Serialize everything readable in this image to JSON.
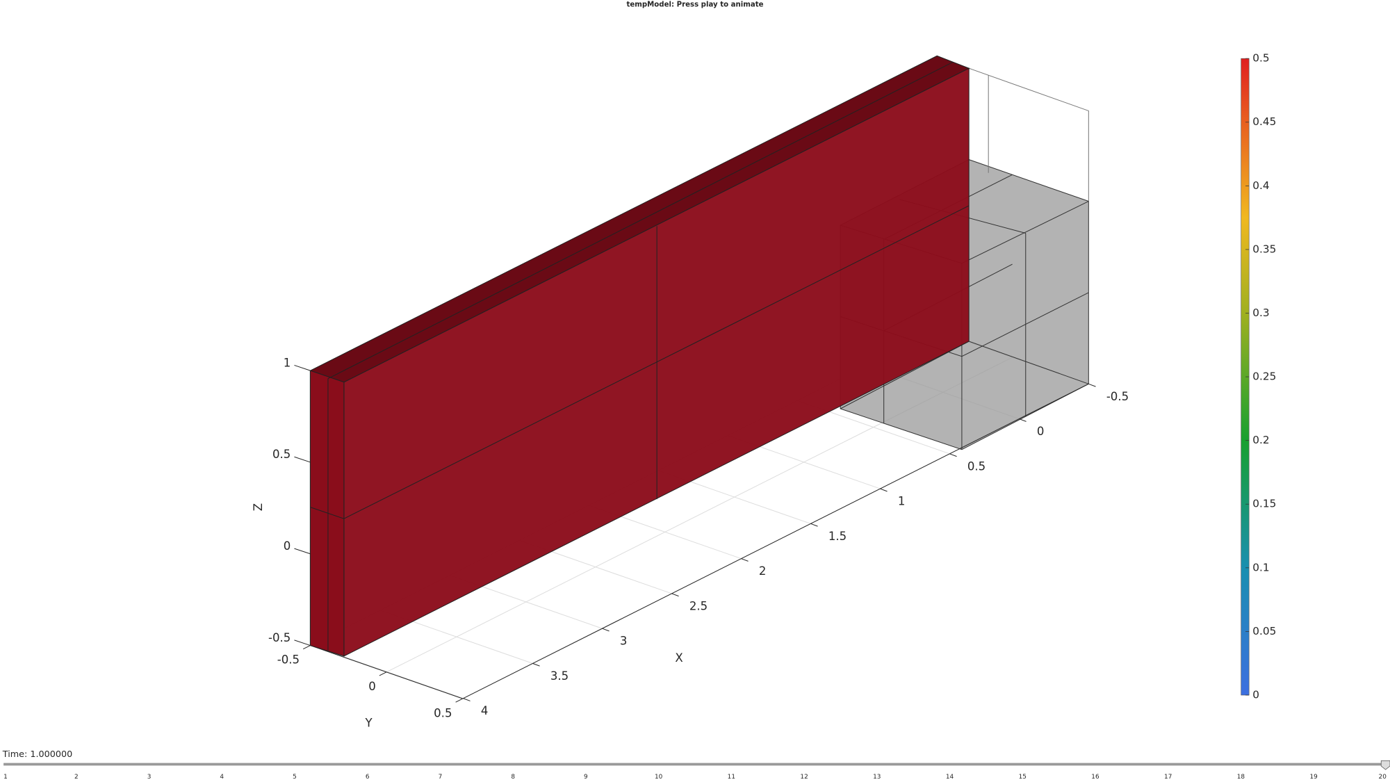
{
  "title": "tempModel: Press play to animate",
  "axes": {
    "x": {
      "label": "X",
      "ticks": [
        -0.5,
        0,
        0.5,
        1,
        1.5,
        2,
        2.5,
        3,
        3.5,
        4
      ]
    },
    "y": {
      "label": "Y",
      "ticks": [
        -0.5,
        0,
        0.5
      ]
    },
    "z": {
      "label": "Z",
      "ticks": [
        -0.5,
        0,
        0.5,
        1
      ]
    }
  },
  "colorbar": {
    "ticks": [
      0,
      0.05,
      0.1,
      0.15,
      0.2,
      0.25,
      0.3,
      0.35,
      0.4,
      0.45,
      0.5
    ]
  },
  "time": "Time: 1.000000",
  "slider": {
    "ticks": [
      1,
      2,
      3,
      4,
      5,
      6,
      7,
      8,
      9,
      10,
      11,
      12,
      13,
      14,
      15,
      16,
      17,
      18,
      19,
      20
    ]
  }
}
